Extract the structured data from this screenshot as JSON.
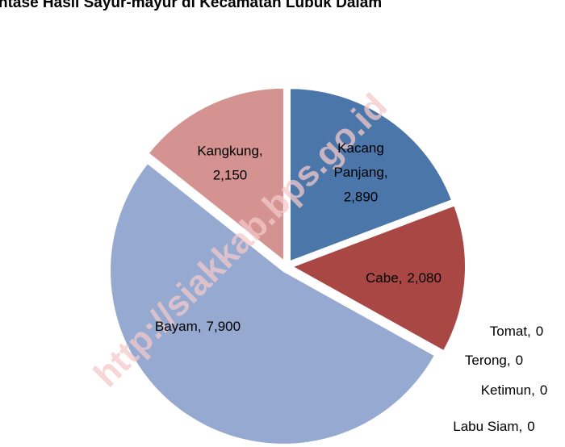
{
  "chart_data": {
    "type": "pie",
    "title": "ntase Hasil Sayur-mayur di Kecamatan Lubuk Dalam",
    "watermark": "http://siakkab.bps.go.id",
    "label_separator": ",",
    "categories": [
      "Kacang Panjang",
      "Cabe",
      "Tomat",
      "Terong",
      "Ketimun",
      "Labu Siam",
      "Bayam",
      "Kangkung"
    ],
    "values": [
      2890,
      2080,
      0,
      0,
      0,
      0,
      7900,
      2150
    ],
    "value_labels": [
      "2,890",
      "2,080",
      "0",
      "0",
      "0",
      "0",
      "7,900",
      "2,150"
    ],
    "colors": [
      "#4a76aa",
      "#a94744",
      "#8aa64e",
      "#7a5f9a",
      "#4aa3bf",
      "#e08a3c",
      "#95a9d1",
      "#d49391"
    ]
  }
}
